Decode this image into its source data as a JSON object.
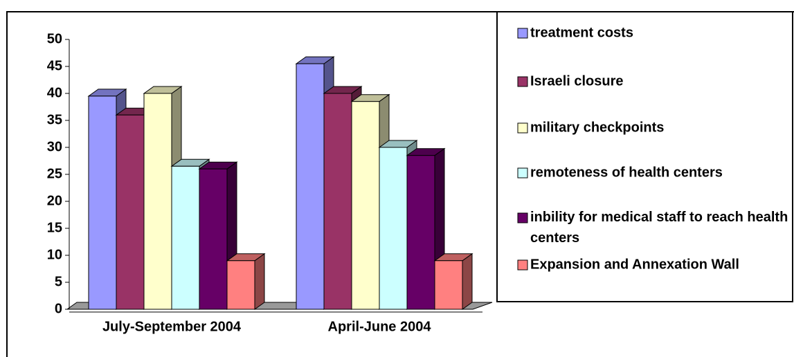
{
  "chart_data": {
    "type": "bar3d",
    "categories": [
      "July-September 2004",
      "April-June 2004"
    ],
    "series": [
      {
        "name": "treatment costs",
        "color": "#9999ff",
        "values": [
          39.5,
          45.5
        ]
      },
      {
        "name": "Israeli closure",
        "color": "#993366",
        "values": [
          36,
          40
        ]
      },
      {
        "name": "military checkpoints",
        "color": "#ffffcc",
        "values": [
          40,
          38.5
        ]
      },
      {
        "name": "remoteness of health centers",
        "color": "#ccffff",
        "values": [
          26.5,
          30
        ]
      },
      {
        "name": "inbility for medical staff to reach health centers",
        "color": "#660066",
        "values": [
          26,
          28.5
        ]
      },
      {
        "name": "Expansion and Annexation Wall",
        "color": "#ff8080",
        "values": [
          9,
          9
        ]
      }
    ],
    "ylim": [
      0,
      50
    ],
    "yticks": [
      0,
      5,
      10,
      15,
      20,
      25,
      30,
      35,
      40,
      45,
      50
    ],
    "grid": false,
    "legend": "right"
  }
}
